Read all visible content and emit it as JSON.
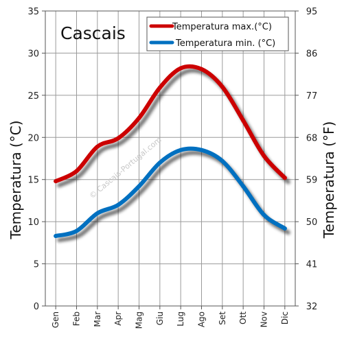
{
  "chart_data": {
    "type": "line",
    "title": "Cascais",
    "watermark": "© Cascais-Portugal.com",
    "categories": [
      "Gen",
      "Feb",
      "Mar",
      "Apr",
      "Mag",
      "Giu",
      "Lug",
      "Ago",
      "Set",
      "Ott",
      "Nov",
      "Dic"
    ],
    "series": [
      {
        "name": "Temperatura max.(°C)",
        "color": "#cc0000",
        "values": [
          14.8,
          16.0,
          18.9,
          19.9,
          22.3,
          25.9,
          28.2,
          28.1,
          26.0,
          22.0,
          17.8,
          15.2
        ]
      },
      {
        "name": "Temperatura min. (°C)",
        "color": "#0070c0",
        "values": [
          8.3,
          8.9,
          11.0,
          12.0,
          14.2,
          17.0,
          18.5,
          18.5,
          17.2,
          14.2,
          10.8,
          9.2
        ]
      }
    ],
    "ylabel": "Temperatura (°C)",
    "ylabel_right": "Temperatura (°F)",
    "ylim": [
      0,
      35
    ],
    "yticks": [
      "0",
      "5",
      "10",
      "15",
      "20",
      "25",
      "30",
      "35"
    ],
    "yticks_right": [
      "32",
      "41",
      "50",
      "59",
      "68",
      "77",
      "86",
      "95"
    ],
    "grid": true,
    "legend_position": "top-right"
  }
}
